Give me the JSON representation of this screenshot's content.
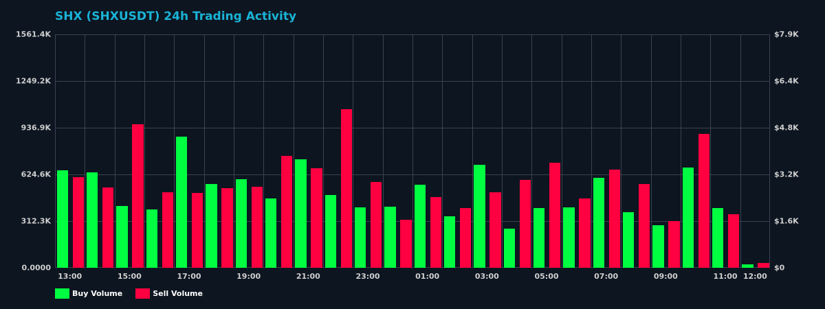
{
  "title": "SHX (SHXUSDT) 24h Trading Activity",
  "colors": {
    "background": "#0d1520",
    "title": "#1ab3d6",
    "buy": "#00ff41",
    "sell": "#ff0040",
    "grid": "#3a4350",
    "tick_text": "#cfcfcf"
  },
  "legend": [
    {
      "label": "Buy Volume",
      "color": "#00ff41"
    },
    {
      "label": "Sell Volume",
      "color": "#ff0040"
    }
  ],
  "axes": {
    "left_ticks": [
      "0.0000",
      "312.3K",
      "624.6K",
      "936.9K",
      "1249.2K",
      "1561.4K"
    ],
    "right_ticks": [
      "$0",
      "$1.6K",
      "$3.2K",
      "$4.8K",
      "$6.4K",
      "$7.9K"
    ],
    "x_tick_labels": [
      {
        "slot": 0,
        "label": "13:00"
      },
      {
        "slot": 2,
        "label": "15:00"
      },
      {
        "slot": 4,
        "label": "17:00"
      },
      {
        "slot": 6,
        "label": "19:00"
      },
      {
        "slot": 8,
        "label": "21:00"
      },
      {
        "slot": 10,
        "label": "23:00"
      },
      {
        "slot": 12,
        "label": "01:00"
      },
      {
        "slot": 14,
        "label": "03:00"
      },
      {
        "slot": 16,
        "label": "05:00"
      },
      {
        "slot": 18,
        "label": "07:00"
      },
      {
        "slot": 20,
        "label": "09:00"
      },
      {
        "slot": 22,
        "label": "11:00"
      },
      {
        "slot": 23,
        "label": "12:00"
      }
    ]
  },
  "chart_data": {
    "type": "bar",
    "title": "SHX (SHXUSDT) 24h Trading Activity",
    "xlabel": "",
    "ylabel": "Volume",
    "ylabel_right": "USD Value",
    "ylim": [
      0,
      1561.4
    ],
    "ylim_units": "K",
    "y2lim": [
      0,
      7.9
    ],
    "y2lim_units": "$K",
    "grid": true,
    "legend_position": "bottom-left",
    "categories": [
      "13:00",
      "14:00",
      "15:00",
      "16:00",
      "17:00",
      "18:00",
      "19:00",
      "20:00",
      "21:00",
      "22:00",
      "23:00",
      "00:00",
      "01:00",
      "02:00",
      "03:00",
      "04:00",
      "05:00",
      "06:00",
      "07:00",
      "08:00",
      "09:00",
      "10:00",
      "11:00",
      "12:00"
    ],
    "series": [
      {
        "name": "Buy Volume",
        "color": "#00ff41",
        "values": [
          652,
          638,
          413,
          390,
          877,
          560,
          592,
          464,
          726,
          487,
          404,
          409,
          556,
          344,
          689,
          262,
          400,
          404,
          602,
          372,
          285,
          670,
          400,
          23
        ]
      },
      {
        "name": "Sell Volume",
        "color": "#ff0040",
        "values": [
          606,
          537,
          960,
          505,
          500,
          533,
          542,
          748,
          666,
          1061,
          574,
          321,
          473,
          400,
          505,
          588,
          703,
          464,
          657,
          560,
          312,
          895,
          358,
          32
        ]
      }
    ]
  }
}
